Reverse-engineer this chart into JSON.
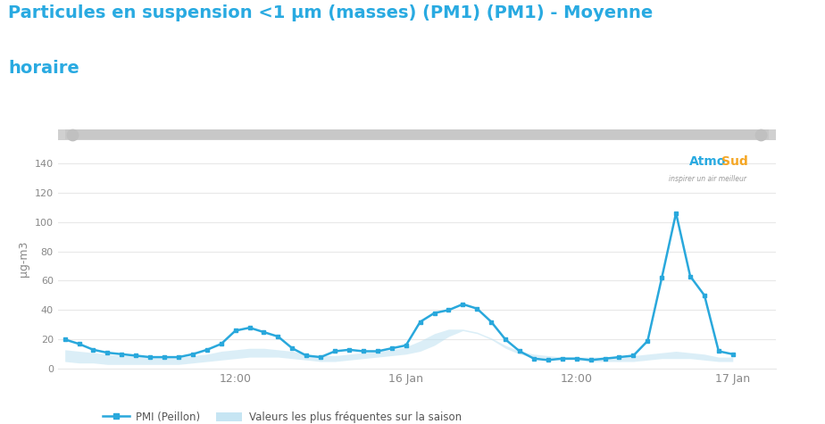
{
  "title_line1": "Particules en suspension <1 μm (masses) (PM1) (PM1) - Moyenne",
  "title_line2": "horaire",
  "title_color": "#29aae1",
  "ylabel": "μg-m3",
  "ylabel_fontsize": 9,
  "ylim": [
    0,
    150
  ],
  "yticks": [
    0,
    20,
    40,
    60,
    80,
    100,
    120,
    140
  ],
  "bg_color": "#ffffff",
  "plot_bg_color": "#ffffff",
  "line_color": "#29a8dc",
  "line_width": 1.8,
  "marker": "s",
  "marker_size": 3.5,
  "fill_color": "#b8dff0",
  "fill_alpha": 0.5,
  "xtick_labels": [
    "12:00",
    "16 Jan",
    "12:00",
    "17 Jan"
  ],
  "legend_line_label": "PMI (Peillon)",
  "legend_fill_label": "Valeurs les plus fréquentes sur la saison",
  "x_values": [
    0,
    1,
    2,
    3,
    4,
    5,
    6,
    7,
    8,
    9,
    10,
    11,
    12,
    13,
    14,
    15,
    16,
    17,
    18,
    19,
    20,
    21,
    22,
    23,
    24,
    25,
    26,
    27,
    28,
    29,
    30,
    31,
    32,
    33,
    34,
    35,
    36,
    37,
    38,
    39,
    40,
    41,
    42,
    43,
    44,
    45,
    46,
    47
  ],
  "y_values": [
    20,
    17,
    13,
    11,
    10,
    9,
    8,
    8,
    8,
    10,
    13,
    17,
    26,
    28,
    25,
    22,
    14,
    9,
    8,
    12,
    13,
    12,
    12,
    14,
    16,
    32,
    38,
    40,
    44,
    41,
    32,
    20,
    12,
    7,
    6,
    7,
    7,
    6,
    7,
    8,
    9,
    19,
    62,
    106,
    63,
    50,
    12,
    10
  ],
  "y_fill_low": [
    5,
    4,
    4,
    3,
    3,
    3,
    3,
    3,
    3,
    4,
    5,
    6,
    7,
    8,
    8,
    8,
    7,
    6,
    5,
    5,
    6,
    7,
    8,
    9,
    10,
    12,
    16,
    22,
    26,
    24,
    20,
    14,
    10,
    8,
    7,
    6,
    6,
    5,
    5,
    5,
    5,
    6,
    7,
    7,
    7,
    6,
    5,
    5
  ],
  "y_fill_high": [
    13,
    12,
    11,
    10,
    9,
    9,
    8,
    8,
    8,
    9,
    10,
    12,
    13,
    14,
    14,
    13,
    12,
    10,
    9,
    9,
    10,
    11,
    12,
    13,
    15,
    19,
    24,
    27,
    27,
    25,
    21,
    16,
    12,
    10,
    9,
    8,
    8,
    8,
    8,
    8,
    9,
    10,
    11,
    12,
    11,
    10,
    8,
    8
  ],
  "x_tick_positions": [
    12,
    24,
    36,
    47
  ],
  "grid_color": "#e8e8e8",
  "scrollbar_color": "#d0d0d0",
  "atmo_blue": "#29aae1",
  "atmo_orange": "#f5a623",
  "atmo_gray": "#999999"
}
